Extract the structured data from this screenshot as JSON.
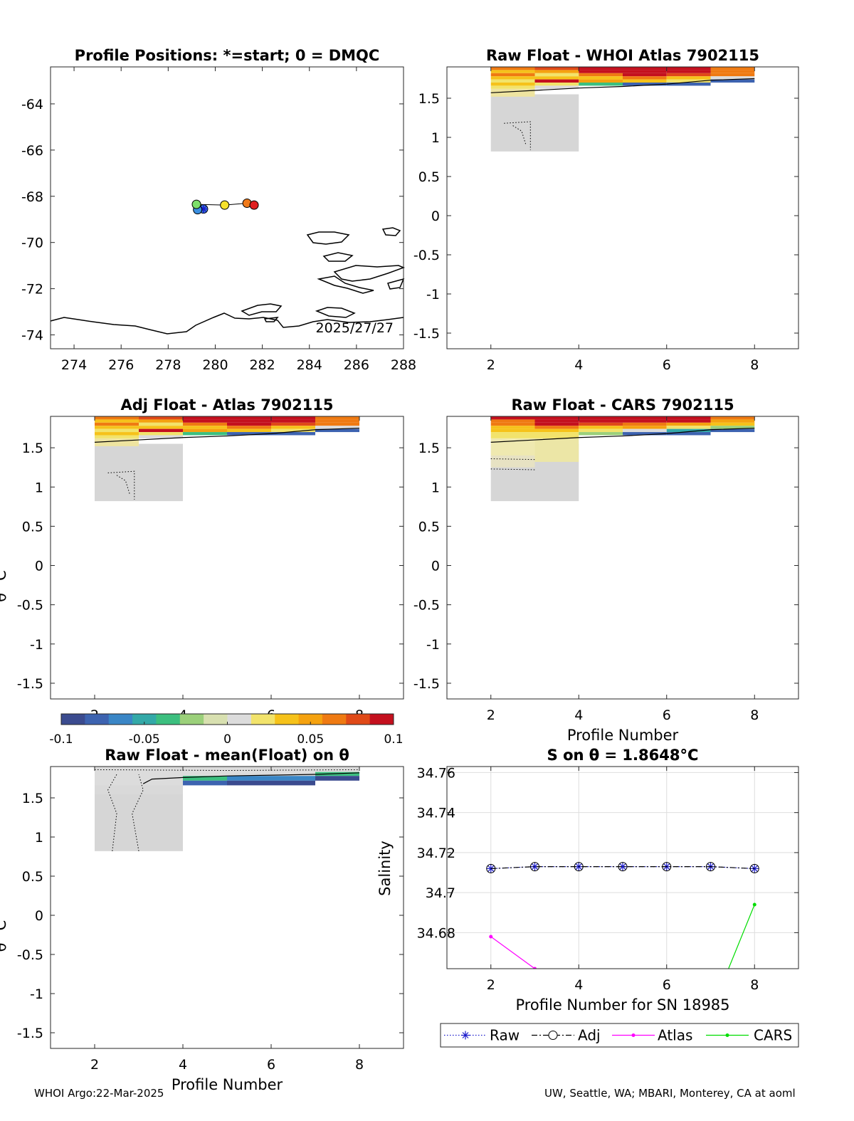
{
  "footer": {
    "left": "WHOI Argo:22-Mar-2025",
    "right": "UW, Seattle, WA; MBARI, Monterey, CA at aoml"
  },
  "chart_data": [
    {
      "id": "map",
      "type": "scatter",
      "title": "Profile Positions: *=start; 0 = DMQC",
      "xlim": [
        273,
        288
      ],
      "ylim": [
        -74.6,
        -62.4
      ],
      "xticks": [
        274,
        276,
        278,
        280,
        282,
        284,
        286,
        288
      ],
      "yticks": [
        -64,
        -66,
        -68,
        -70,
        -72,
        -74
      ],
      "annotation": "2025/27/27",
      "positions": [
        {
          "lon": 279.5,
          "lat": -68.55,
          "color": "#3a7fd5",
          "start": true
        },
        {
          "lon": 279.25,
          "lat": -68.58,
          "color": "#3a8fe0"
        },
        {
          "lon": 279.2,
          "lat": -68.35,
          "color": "#7ee06a"
        },
        {
          "lon": 280.4,
          "lat": -68.38,
          "color": "#f6e12b"
        },
        {
          "lon": 281.35,
          "lat": -68.3,
          "color": "#f07a1a"
        },
        {
          "lon": 281.65,
          "lat": -68.38,
          "color": "#e02020"
        }
      ]
    },
    {
      "id": "raw_atlas",
      "type": "heatmap",
      "title": "Raw Float - WHOI Atlas  7902115",
      "xlim": [
        1,
        9
      ],
      "ylim": [
        -1.7,
        1.9
      ],
      "xticks": [
        2,
        4,
        6,
        8
      ],
      "yticks": [
        1.5,
        1,
        0.5,
        0,
        -0.5,
        -1,
        -1.5
      ],
      "xlabel": "",
      "ylabel": ""
    },
    {
      "id": "adj_atlas",
      "type": "heatmap",
      "title": "Adj Float - Atlas  7902115",
      "xlim": [
        1,
        9
      ],
      "ylim": [
        -1.7,
        1.9
      ],
      "xticks": [
        2,
        4,
        6,
        8
      ],
      "yticks": [
        1.5,
        1,
        0.5,
        0,
        -0.5,
        -1,
        -1.5
      ],
      "ylabel": "θ °C"
    },
    {
      "id": "raw_cars",
      "type": "heatmap",
      "title": "Raw Float - CARS  7902115",
      "xlim": [
        1,
        9
      ],
      "ylim": [
        -1.7,
        1.9
      ],
      "xticks": [
        2,
        4,
        6,
        8
      ],
      "yticks": [
        1.5,
        1,
        0.5,
        0,
        -0.5,
        -1,
        -1.5
      ],
      "xlabel": "Profile Number"
    },
    {
      "id": "colorbar",
      "type": "heatmap",
      "range": [
        -0.1,
        0.1
      ],
      "ticks": [
        {
          "v": -0.1,
          "label": "-0.1"
        },
        {
          "v": -0.05,
          "label": "-0.05"
        },
        {
          "v": 0,
          "label": "0"
        },
        {
          "v": 0.05,
          "label": "0.05"
        },
        {
          "v": 0.1,
          "label": "0.1"
        }
      ],
      "colors": [
        "#3b4b8f",
        "#3d63b0",
        "#3a86c6",
        "#33a9a8",
        "#3cbf7f",
        "#9bd07a",
        "#d8e0b0",
        "#dcdcdc",
        "#f2e36b",
        "#f6c21a",
        "#f5a20f",
        "#ef7a12",
        "#e04a18",
        "#c4101e"
      ]
    },
    {
      "id": "raw_mean",
      "type": "heatmap",
      "title": "Raw Float - mean(Float) on θ",
      "xlim": [
        1,
        9
      ],
      "ylim": [
        -1.7,
        1.9
      ],
      "xticks": [
        2,
        4,
        6,
        8
      ],
      "yticks": [
        1.5,
        1,
        0.5,
        0,
        -0.5,
        -1,
        -1.5
      ],
      "xlabel": "Profile Number",
      "ylabel": "θ °C"
    },
    {
      "id": "salinity",
      "type": "line",
      "title": "S on θ = 1.8648°C",
      "xlim": [
        1,
        9
      ],
      "ylim": [
        34.662,
        34.763
      ],
      "xticks": [
        2,
        4,
        6,
        8
      ],
      "yticks": [
        {
          "v": 34.76,
          "label": "34.76"
        },
        {
          "v": 34.74,
          "label": "34.74"
        },
        {
          "v": 34.72,
          "label": "34.72"
        },
        {
          "v": 34.7,
          "label": "34.7"
        },
        {
          "v": 34.68,
          "label": "34.68"
        }
      ],
      "xlabel": "Profile Number for SN 18985",
      "ylabel": "Salinity",
      "series": [
        {
          "name": "Raw",
          "color": "#1a1acc",
          "x": [
            2,
            3,
            4,
            5,
            6,
            7,
            8
          ],
          "values": [
            34.712,
            34.713,
            34.713,
            34.713,
            34.713,
            34.713,
            34.712
          ]
        },
        {
          "name": "Adj",
          "color": "#000000",
          "x": [
            2,
            3,
            4,
            5,
            6,
            7,
            8
          ],
          "values": [
            34.712,
            34.713,
            34.713,
            34.713,
            34.713,
            34.713,
            34.712
          ]
        },
        {
          "name": "Atlas",
          "color": "#ff00ff",
          "x": [
            2,
            3,
            4
          ],
          "values": [
            34.678,
            34.662,
            34.64
          ]
        },
        {
          "name": "CARS",
          "color": "#00dd00",
          "x": [
            7,
            8
          ],
          "values": [
            34.64,
            34.694
          ]
        }
      ]
    }
  ]
}
